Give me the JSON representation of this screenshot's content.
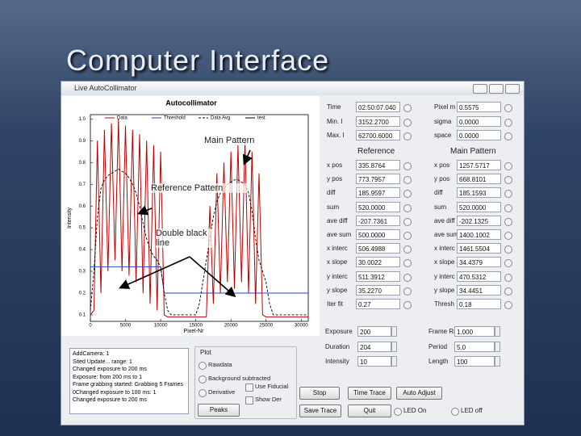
{
  "slide_title": "Computer Interface",
  "window": {
    "title": "Live AutoCollimator"
  },
  "chart_data": {
    "type": "line",
    "title": "Autocollimator",
    "x_label": "Pixel-Nr",
    "y_label": "Intensity",
    "x": [
      0,
      500,
      1000,
      1500,
      2000,
      2500,
      3000,
      3500,
      4000,
      4500,
      5000,
      5500,
      6000,
      6500,
      7000,
      7500,
      8000,
      8500,
      9000,
      9500,
      10000,
      10500,
      11000,
      11500,
      12000,
      12500,
      13000,
      13500,
      14000,
      14500,
      15000,
      15500,
      16000,
      16500,
      17000,
      17500,
      18000,
      18500,
      19000,
      19500,
      20000,
      20500,
      21000,
      21500,
      22000,
      22500,
      23000,
      23500,
      24000,
      24500,
      25000,
      25500,
      26000,
      26500,
      27000,
      27500,
      28000,
      28500,
      29000,
      29500,
      30000,
      30500,
      31000
    ],
    "series": [
      {
        "name": "Data",
        "color": "#c00000",
        "style": "solid",
        "values": [
          0.1,
          0.12,
          0.9,
          0.2,
          0.95,
          0.3,
          0.98,
          0.35,
          1.0,
          0.3,
          0.97,
          0.28,
          0.95,
          0.25,
          0.93,
          0.2,
          0.9,
          0.15,
          0.88,
          0.12,
          0.85,
          0.1,
          0.09,
          0.09,
          0.09,
          0.09,
          0.09,
          0.09,
          0.09,
          0.09,
          0.09,
          0.09,
          0.09,
          0.09,
          0.6,
          0.15,
          0.75,
          0.2,
          0.8,
          0.25,
          0.85,
          0.22,
          0.88,
          0.25,
          0.9,
          0.2,
          0.85,
          0.15,
          0.75,
          0.1,
          0.09,
          0.09,
          0.09,
          0.09,
          0.09,
          0.09,
          0.09,
          0.09,
          0.09,
          0.09,
          0.09,
          0.09,
          0.09
        ]
      },
      {
        "name": "Threshold",
        "color": "#2040c0",
        "style": "solid",
        "values": [
          0.32,
          0.32,
          0.32,
          0.32,
          0.32,
          0.32,
          0.32,
          0.32,
          0.32,
          0.32,
          0.32,
          0.32,
          0.32,
          0.32,
          0.32,
          0.32,
          0.32,
          0.32,
          0.32,
          0.32,
          0.32,
          0.2,
          0.2,
          0.2,
          0.2,
          0.2,
          0.2,
          0.2,
          0.2,
          0.2,
          0.2,
          0.2,
          0.2,
          0.2,
          0.2,
          0.2,
          0.2,
          0.2,
          0.2,
          0.2,
          0.2,
          0.2,
          0.2,
          0.2,
          0.2,
          0.2,
          0.2,
          0.2,
          0.2,
          0.2,
          0.2,
          0.2,
          0.2,
          0.2,
          0.2,
          0.2,
          0.2,
          0.2,
          0.2,
          0.2,
          0.2,
          0.2,
          0.2
        ]
      },
      {
        "name": "Data Avg",
        "color": "#000000",
        "style": "dashed",
        "values": [
          0.12,
          0.3,
          0.55,
          0.68,
          0.72,
          0.74,
          0.75,
          0.76,
          0.77,
          0.76,
          0.75,
          0.73,
          0.7,
          0.66,
          0.6,
          0.52,
          0.45,
          0.4,
          0.37,
          0.35,
          0.32,
          0.2,
          0.12,
          0.1,
          0.1,
          0.1,
          0.1,
          0.1,
          0.1,
          0.1,
          0.1,
          0.15,
          0.25,
          0.35,
          0.45,
          0.55,
          0.62,
          0.66,
          0.68,
          0.7,
          0.71,
          0.72,
          0.72,
          0.71,
          0.7,
          0.66,
          0.58,
          0.45,
          0.35,
          0.3,
          0.25,
          0.15,
          0.1,
          0.1,
          0.1,
          0.1,
          0.1,
          0.1,
          0.1,
          0.1,
          0.1,
          0.1,
          0.1
        ]
      },
      {
        "name": "test",
        "color": "#000000",
        "style": "solid",
        "values": [
          null,
          null,
          null,
          null,
          null,
          null,
          null,
          null,
          null,
          null,
          null,
          null,
          null,
          null,
          null,
          null,
          null,
          null,
          null,
          null,
          null,
          null,
          null,
          null,
          null,
          null,
          null,
          null,
          null,
          null,
          null,
          null,
          null,
          null,
          null,
          null,
          null,
          null,
          null,
          null,
          null,
          null,
          null,
          null,
          null,
          null,
          null,
          null,
          null,
          null,
          null,
          null,
          null,
          null,
          null,
          null,
          null,
          null,
          null,
          null,
          null,
          null,
          null
        ]
      }
    ],
    "xlim": [
      0,
      31000
    ],
    "ylim": [
      0.07,
      1.02
    ],
    "xticks": [
      0,
      5000,
      10000,
      15000,
      20000,
      25000,
      30000
    ],
    "yticks": [
      0.1,
      0.2,
      0.3,
      0.4,
      0.5,
      0.6,
      0.7,
      0.8,
      0.9,
      {
        "value": 1,
        "label": "1.0"
      }
    ],
    "annotations": [
      "Main Pattern",
      "Reference Pattern",
      "Double black line"
    ]
  },
  "top_fields": [
    {
      "label": "Time",
      "value": "02:50:07.040"
    },
    {
      "label": "Min. I",
      "value": "3152.2700"
    },
    {
      "label": "Max. I",
      "value": "62700.6000"
    }
  ],
  "top_fields_right": [
    {
      "label": "Pixel m",
      "value": "0.5575"
    },
    {
      "label": "sigma",
      "value": "0.0000"
    },
    {
      "label": "space",
      "value": "0.0000"
    }
  ],
  "headers": [
    "Reference",
    "Main Pattern"
  ],
  "reference": [
    {
      "label": "x pos",
      "value": "335.8764"
    },
    {
      "label": "y pos",
      "value": "773.7957"
    },
    {
      "label": "diff",
      "value": "185.9597"
    },
    {
      "label": "sum",
      "value": "520.0000"
    },
    {
      "label": "ave diff",
      "value": "-207.7361"
    },
    {
      "label": "ave sum",
      "value": "500.0000"
    },
    {
      "label": "x interc",
      "value": "506.4988"
    },
    {
      "label": "x slope",
      "value": "30.0022"
    },
    {
      "label": "y interc",
      "value": "511.3912"
    },
    {
      "label": "y slope",
      "value": "35.2270"
    },
    {
      "label": "Iter fit",
      "value": "0.27"
    }
  ],
  "main": [
    {
      "label": "x pos",
      "value": "1257.5717"
    },
    {
      "label": "y pos",
      "value": "668.8101"
    },
    {
      "label": "diff",
      "value": "185.1593"
    },
    {
      "label": "sum",
      "value": "520.0000"
    },
    {
      "label": "ave diff",
      "value": "-202.1325"
    },
    {
      "label": "ave sum",
      "value": "1400.1002"
    },
    {
      "label": "x interc",
      "value": "1461.5504"
    },
    {
      "label": "x slope",
      "value": "34.4379"
    },
    {
      "label": "y interc",
      "value": "470.5312"
    },
    {
      "label": "y slope",
      "value": "34.4451"
    },
    {
      "label": "Thresh",
      "value": "0.18"
    }
  ],
  "settings_left": [
    {
      "label": "Exposure",
      "value": "200"
    },
    {
      "label": "Duration",
      "value": "204"
    },
    {
      "label": "Intensity",
      "value": "10"
    }
  ],
  "settings_right": [
    {
      "label": "Frame Rate",
      "value": "1.000"
    },
    {
      "label": "Period",
      "value": "5.0"
    },
    {
      "label": "Length",
      "value": "100"
    }
  ],
  "buttons": [
    "Stop",
    "Time Trace",
    "Auto Adjust",
    "Save Trace",
    "Quit"
  ],
  "leds": [
    "LED On",
    "LED off"
  ],
  "plot_group": {
    "title": "Plot",
    "options": [
      "Rawdata",
      "Background subtracted",
      "Derivative"
    ],
    "checks": [
      "Use Fiducial",
      "Show Der"
    ],
    "button": "Peaks"
  },
  "log": [
    "AddCamera: 1",
    "Sited Update... range: 1",
    "Changed exposure to 200 ms",
    "Exposure: from 200 ms to 1",
    "Frame grabbing started: Grabbing 5 Frames",
    "0Changed exposure to 100 ms: 1",
    "Changed exposure to 200 ms"
  ]
}
